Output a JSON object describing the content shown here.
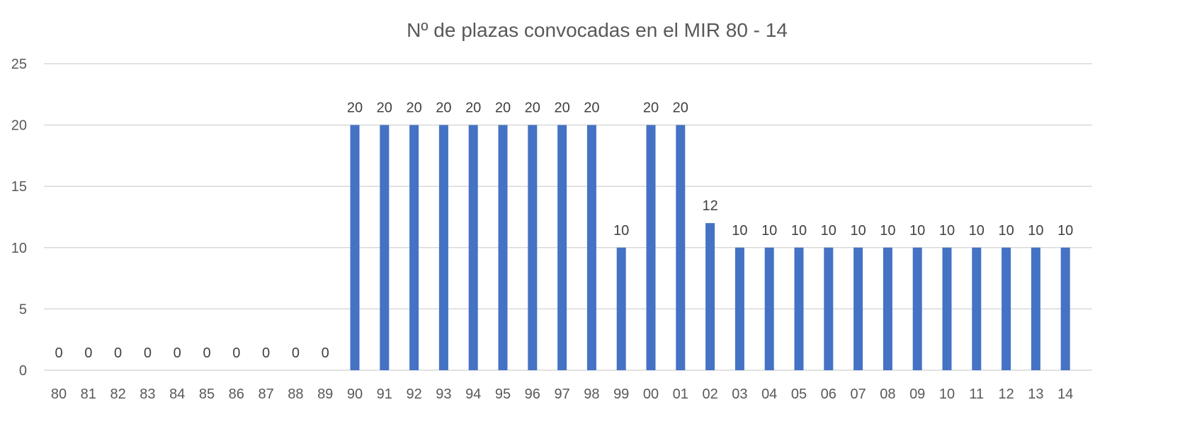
{
  "chart_data": {
    "type": "bar",
    "title": "Nº de plazas convocadas en el MIR 80 - 14",
    "xlabel": "",
    "ylabel": "",
    "categories": [
      "80",
      "81",
      "82",
      "83",
      "84",
      "85",
      "86",
      "87",
      "88",
      "89",
      "90",
      "91",
      "92",
      "93",
      "94",
      "95",
      "96",
      "97",
      "98",
      "99",
      "00",
      "01",
      "02",
      "03",
      "04",
      "05",
      "06",
      "07",
      "08",
      "09",
      "10",
      "11",
      "12",
      "13",
      "14"
    ],
    "values": [
      0,
      0,
      0,
      0,
      0,
      0,
      0,
      0,
      0,
      0,
      20,
      20,
      20,
      20,
      20,
      20,
      20,
      20,
      20,
      10,
      20,
      20,
      12,
      10,
      10,
      10,
      10,
      10,
      10,
      10,
      10,
      10,
      10,
      10,
      10
    ],
    "ylim": [
      0,
      25
    ],
    "yticks": [
      0,
      5,
      10,
      15,
      20,
      25
    ],
    "grid": true,
    "legend": "none",
    "colors": {
      "bar": "#4472C4",
      "grid": "#d9d9d9",
      "text": "#595959",
      "data_label": "#404040"
    }
  }
}
